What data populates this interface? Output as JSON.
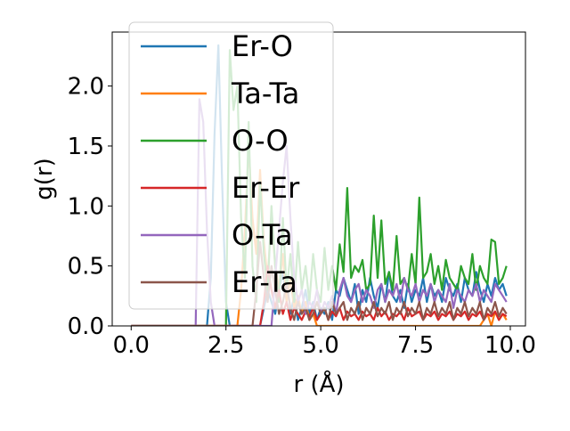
{
  "chart_data": {
    "type": "line",
    "title": "",
    "xlabel": "r (Å)",
    "ylabel": "g(r)",
    "xlim": [
      -0.5,
      10.4
    ],
    "ylim": [
      0.0,
      2.45
    ],
    "xticks": [
      "0.0",
      "2.5",
      "5.0",
      "7.5",
      "10.0"
    ],
    "xtick_values": [
      0.0,
      2.5,
      5.0,
      7.5,
      10.0
    ],
    "yticks": [
      "0.0",
      "0.5",
      "1.0",
      "1.5",
      "2.0"
    ],
    "ytick_values": [
      0.0,
      0.5,
      1.0,
      1.5,
      2.0
    ],
    "grid": false,
    "legend_placement": "upper-left",
    "series": [
      {
        "name": "Er-O",
        "color": "#1f77b4",
        "x": [
          0.0,
          2.0,
          2.1,
          2.2,
          2.3,
          2.4,
          2.5,
          2.6,
          3.4,
          3.5,
          3.6,
          3.7,
          3.8,
          3.9,
          4.0,
          4.1,
          4.2,
          4.3,
          4.4,
          4.5,
          4.6,
          4.7,
          4.8,
          4.9,
          5.0,
          5.1,
          5.2,
          5.3,
          5.4,
          5.5,
          5.6,
          5.7,
          5.8,
          5.9,
          6.0,
          6.1,
          6.2,
          6.3,
          6.4,
          6.5,
          6.6,
          6.7,
          6.8,
          6.9,
          7.0,
          7.1,
          7.2,
          7.3,
          7.4,
          7.5,
          7.6,
          7.7,
          7.8,
          7.9,
          8.0,
          8.1,
          8.2,
          8.3,
          8.4,
          8.5,
          8.6,
          8.7,
          8.8,
          8.9,
          9.0,
          9.1,
          9.2,
          9.3,
          9.4,
          9.5,
          9.6,
          9.7,
          9.8,
          9.9
        ],
        "y": [
          0.0,
          0.0,
          0.4,
          1.6,
          2.34,
          1.2,
          0.2,
          0.0,
          0.0,
          0.15,
          0.3,
          0.2,
          0.1,
          0.3,
          0.45,
          0.2,
          0.1,
          0.25,
          0.05,
          0.15,
          0.3,
          0.1,
          0.2,
          0.05,
          0.15,
          0.1,
          0.2,
          0.05,
          0.3,
          0.25,
          0.4,
          0.3,
          0.2,
          0.35,
          0.1,
          0.3,
          0.2,
          0.4,
          0.25,
          0.15,
          0.35,
          0.2,
          0.45,
          0.25,
          0.2,
          0.3,
          0.15,
          0.35,
          0.2,
          0.3,
          0.25,
          0.4,
          0.2,
          0.35,
          0.25,
          0.3,
          0.2,
          0.4,
          0.3,
          0.25,
          0.35,
          0.2,
          0.4,
          0.3,
          0.25,
          0.45,
          0.3,
          0.2,
          0.35,
          0.25,
          0.4,
          0.3,
          0.35,
          0.25
        ]
      },
      {
        "name": "Ta-Ta",
        "color": "#ff7f0e",
        "x": [
          0.0,
          2.8,
          2.9,
          3.0,
          3.1,
          3.2,
          3.3,
          3.4,
          3.5,
          3.6,
          3.7,
          3.8,
          3.9,
          4.0,
          4.1,
          4.2,
          4.3,
          4.4,
          4.5,
          4.6,
          4.7,
          4.8,
          4.9,
          5.0,
          5.2,
          5.5,
          6.0,
          6.5,
          7.0,
          7.5,
          8.0,
          8.5,
          9.0,
          9.2,
          9.3,
          9.4,
          9.5,
          9.6,
          9.7,
          9.8,
          9.9
        ],
        "y": [
          0.0,
          0.0,
          0.3,
          0.8,
          1.5,
          0.9,
          0.6,
          1.3,
          0.7,
          0.4,
          0.9,
          0.5,
          0.3,
          0.6,
          0.2,
          0.4,
          0.15,
          0.25,
          0.1,
          0.2,
          0.05,
          0.1,
          0.0,
          0.0,
          0.0,
          0.0,
          0.0,
          0.0,
          0.0,
          0.0,
          0.0,
          0.0,
          0.0,
          0.0,
          0.05,
          0.1,
          0.0,
          0.12,
          0.05,
          0.1,
          0.05
        ]
      },
      {
        "name": "O-O",
        "color": "#2ca02c",
        "x": [
          0.0,
          2.5,
          2.6,
          2.7,
          2.8,
          2.9,
          3.0,
          3.1,
          3.2,
          3.3,
          3.4,
          3.5,
          3.6,
          3.7,
          3.8,
          3.9,
          4.0,
          4.1,
          4.2,
          4.3,
          4.4,
          4.5,
          4.6,
          4.7,
          4.8,
          4.9,
          5.0,
          5.1,
          5.2,
          5.3,
          5.4,
          5.5,
          5.6,
          5.7,
          5.8,
          5.9,
          6.0,
          6.1,
          6.2,
          6.3,
          6.4,
          6.5,
          6.6,
          6.7,
          6.8,
          6.9,
          7.0,
          7.1,
          7.2,
          7.3,
          7.4,
          7.5,
          7.6,
          7.7,
          7.8,
          7.9,
          8.0,
          8.1,
          8.2,
          8.3,
          8.4,
          8.5,
          8.6,
          8.7,
          8.8,
          8.9,
          9.0,
          9.1,
          9.2,
          9.3,
          9.4,
          9.5,
          9.6,
          9.7,
          9.8,
          9.9
        ],
        "y": [
          0.0,
          0.0,
          2.3,
          1.8,
          2.0,
          0.9,
          0.4,
          1.7,
          0.5,
          0.2,
          1.2,
          0.6,
          0.3,
          1.0,
          0.5,
          0.2,
          0.9,
          0.3,
          0.6,
          0.2,
          0.7,
          0.3,
          0.5,
          0.2,
          0.6,
          0.3,
          0.2,
          0.65,
          0.3,
          0.5,
          0.3,
          0.68,
          0.45,
          1.15,
          0.4,
          0.5,
          0.45,
          0.55,
          0.3,
          0.35,
          0.92,
          0.4,
          0.88,
          0.35,
          0.45,
          0.3,
          0.75,
          0.35,
          0.4,
          0.3,
          0.6,
          0.35,
          1.07,
          0.4,
          0.45,
          0.6,
          0.35,
          0.5,
          0.3,
          0.55,
          0.4,
          0.35,
          0.3,
          0.5,
          0.4,
          0.35,
          0.6,
          0.3,
          0.5,
          0.4,
          0.35,
          0.72,
          0.7,
          0.35,
          0.4,
          0.5
        ]
      },
      {
        "name": "Er-Er",
        "color": "#d62728",
        "x": [
          0.0,
          3.4,
          3.5,
          3.6,
          3.7,
          3.8,
          3.9,
          4.0,
          4.1,
          4.2,
          4.3,
          4.4,
          4.5,
          4.6,
          4.7,
          4.8,
          4.9,
          5.0,
          5.1,
          5.2,
          5.3,
          5.4,
          5.5,
          5.6,
          5.7,
          5.8,
          5.9,
          6.0,
          6.1,
          6.2,
          6.3,
          6.4,
          6.5,
          6.6,
          6.7,
          6.8,
          6.9,
          7.0,
          7.1,
          7.2,
          7.3,
          7.4,
          7.5,
          7.6,
          7.7,
          7.8,
          7.9,
          8.0,
          8.1,
          8.2,
          8.3,
          8.4,
          8.5,
          8.6,
          8.7,
          8.8,
          8.9,
          9.0,
          9.1,
          9.2,
          9.3,
          9.4,
          9.5,
          9.6,
          9.7,
          9.8,
          9.9
        ],
        "y": [
          0.0,
          0.0,
          0.2,
          0.5,
          0.3,
          0.15,
          0.3,
          0.1,
          0.2,
          0.05,
          0.15,
          0.1,
          0.05,
          0.12,
          0.08,
          0.15,
          0.05,
          0.1,
          0.15,
          0.05,
          0.12,
          0.08,
          0.15,
          0.05,
          0.12,
          0.08,
          0.1,
          0.05,
          0.12,
          0.08,
          0.1,
          0.05,
          0.15,
          0.08,
          0.12,
          0.05,
          0.1,
          0.08,
          0.12,
          0.05,
          0.15,
          0.08,
          0.1,
          0.12,
          0.05,
          0.1,
          0.08,
          0.12,
          0.05,
          0.1,
          0.08,
          0.12,
          0.05,
          0.1,
          0.08,
          0.12,
          0.05,
          0.1,
          0.08,
          0.12,
          0.05,
          0.1,
          0.08,
          0.12,
          0.05,
          0.1,
          0.08
        ]
      },
      {
        "name": "O-Ta",
        "color": "#9467bd",
        "x": [
          0.0,
          1.7,
          1.8,
          1.9,
          2.0,
          2.1,
          2.2,
          2.3,
          3.7,
          3.8,
          3.9,
          4.0,
          4.1,
          4.2,
          4.3,
          4.4,
          4.5,
          4.6,
          4.7,
          4.8,
          4.9,
          5.0,
          5.1,
          5.2,
          5.3,
          5.4,
          5.5,
          5.6,
          5.7,
          5.8,
          5.9,
          6.0,
          6.1,
          6.2,
          6.3,
          6.4,
          6.5,
          6.6,
          6.7,
          6.8,
          6.9,
          7.0,
          7.1,
          7.2,
          7.3,
          7.4,
          7.5,
          7.6,
          7.7,
          7.8,
          7.9,
          8.0,
          8.1,
          8.2,
          8.3,
          8.4,
          8.5,
          8.6,
          8.7,
          8.8,
          8.9,
          9.0,
          9.1,
          9.2,
          9.3,
          9.4,
          9.5,
          9.6,
          9.7,
          9.8,
          9.9
        ],
        "y": [
          0.0,
          0.0,
          1.89,
          1.7,
          0.8,
          0.2,
          0.0,
          0.0,
          0.0,
          0.4,
          0.8,
          1.2,
          1.5,
          0.9,
          0.4,
          0.2,
          0.3,
          0.1,
          0.2,
          0.15,
          0.3,
          0.1,
          0.2,
          0.15,
          0.25,
          0.1,
          0.3,
          0.4,
          0.25,
          0.2,
          0.3,
          0.35,
          0.2,
          0.3,
          0.25,
          0.15,
          0.3,
          0.35,
          0.2,
          0.3,
          0.25,
          0.35,
          0.2,
          0.4,
          0.3,
          0.25,
          0.35,
          0.2,
          0.3,
          0.25,
          0.35,
          0.2,
          0.3,
          0.25,
          0.2,
          0.35,
          0.15,
          0.3,
          0.25,
          0.2,
          0.3,
          0.25,
          0.35,
          0.2,
          0.3,
          0.25,
          0.2,
          0.35,
          0.3,
          0.25,
          0.2
        ]
      },
      {
        "name": "Er-Ta",
        "color": "#8c564b",
        "x": [
          0.0,
          3.2,
          3.3,
          3.4,
          3.5,
          3.6,
          3.7,
          3.8,
          3.9,
          4.0,
          4.1,
          4.2,
          4.3,
          4.4,
          4.5,
          4.6,
          4.7,
          4.8,
          4.9,
          5.0,
          5.1,
          5.2,
          5.3,
          5.4,
          5.5,
          5.6,
          5.7,
          5.8,
          5.9,
          6.0,
          6.1,
          6.2,
          6.3,
          6.4,
          6.5,
          6.6,
          6.7,
          6.8,
          6.9,
          7.0,
          7.1,
          7.2,
          7.3,
          7.4,
          7.5,
          7.6,
          7.7,
          7.8,
          7.9,
          8.0,
          8.1,
          8.2,
          8.3,
          8.4,
          8.5,
          8.6,
          8.7,
          8.8,
          8.9,
          9.0,
          9.1,
          9.2,
          9.3,
          9.4,
          9.5,
          9.6,
          9.7,
          9.8,
          9.9
        ],
        "y": [
          0.0,
          0.0,
          0.3,
          0.7,
          0.4,
          0.2,
          0.5,
          0.3,
          0.1,
          0.2,
          0.35,
          0.15,
          0.05,
          0.2,
          0.1,
          0.15,
          0.05,
          0.1,
          0.2,
          0.1,
          0.15,
          0.05,
          0.2,
          0.1,
          0.15,
          0.2,
          0.05,
          0.15,
          0.1,
          0.2,
          0.05,
          0.15,
          0.1,
          0.2,
          0.08,
          0.15,
          0.1,
          0.2,
          0.05,
          0.15,
          0.1,
          0.2,
          0.08,
          0.15,
          0.1,
          0.2,
          0.05,
          0.15,
          0.1,
          0.2,
          0.08,
          0.15,
          0.1,
          0.2,
          0.05,
          0.15,
          0.1,
          0.2,
          0.08,
          0.15,
          0.1,
          0.2,
          0.05,
          0.15,
          0.1,
          0.2,
          0.08,
          0.15,
          0.1
        ]
      }
    ]
  }
}
